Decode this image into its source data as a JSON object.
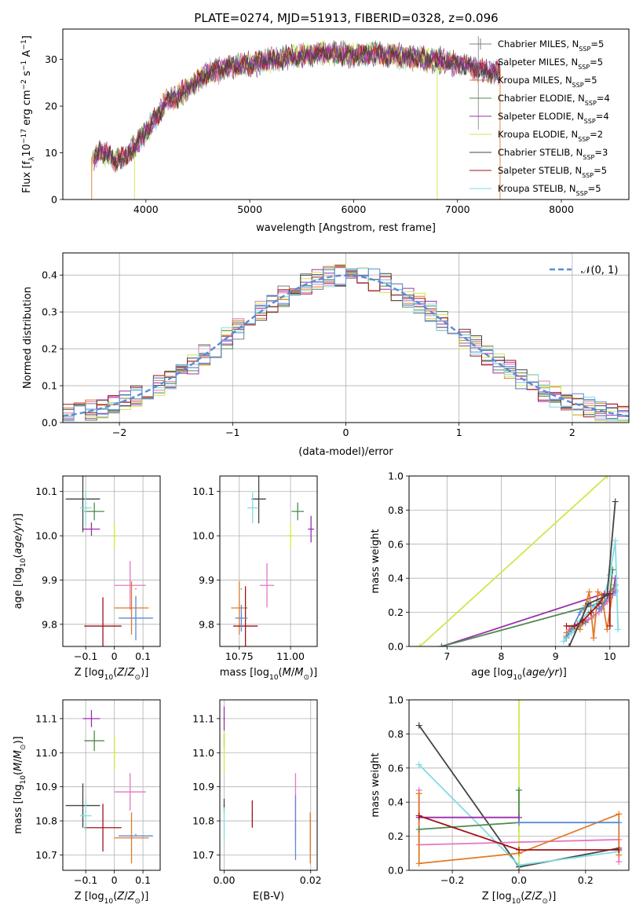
{
  "figure": {
    "title": "PLATE=0274, MJD=51913, FIBERID=0328, z=0.096"
  },
  "series": [
    {
      "label": "Chabrier MILES, N$_{SSP}$=5",
      "label_main": "Chabrier MILES, N",
      "label_sub": "SSP",
      "label_tail": "=5",
      "color": "#7f7f7f"
    },
    {
      "label": "Salpeter MILES, N$_{SSP}$=5",
      "label_main": "Salpeter MILES, N",
      "label_sub": "SSP",
      "label_tail": "=5",
      "color": "#e377c2"
    },
    {
      "label": "Kroupa MILES, N$_{SSP}$=5",
      "label_main": "Kroupa MILES, N",
      "label_sub": "SSP",
      "label_tail": "=5",
      "color": "#e07b27"
    },
    {
      "label": "Chabrier ELODIE, N$_{SSP}$=4",
      "label_main": "Chabrier ELODIE, N",
      "label_sub": "SSP",
      "label_tail": "=4",
      "color": "#4f8a4f"
    },
    {
      "label": "Salpeter ELODIE, N$_{SSP}$=4",
      "label_main": "Salpeter ELODIE, N",
      "label_sub": "SSP",
      "label_tail": "=4",
      "color": "#9b2fae"
    },
    {
      "label": "Kroupa ELODIE, N$_{SSP}$=2",
      "label_main": "Kroupa ELODIE, N",
      "label_sub": "SSP",
      "label_tail": "=2",
      "color": "#cde84b"
    },
    {
      "label": "Chabrier STELIB, N$_{SSP}$=3",
      "label_main": "Chabrier STELIB, N",
      "label_sub": "SSP",
      "label_tail": "=3",
      "color": "#444444"
    },
    {
      "label": "Salpeter STELIB, N$_{SSP}$=5",
      "label_main": "Salpeter STELIB, N",
      "label_sub": "SSP",
      "label_tail": "=5",
      "color": "#a01418"
    },
    {
      "label": "Kroupa STELIB, N$_{SSP}$=5",
      "label_main": "Kroupa STELIB, N",
      "label_sub": "SSP",
      "label_tail": "=5",
      "color": "#80dce0"
    },
    {
      "label": "",
      "color": "#5b8ad6"
    }
  ],
  "chart_data": [
    {
      "id": "spectrum",
      "type": "line",
      "xlabel": "wavelength [Angstrom, rest frame]",
      "ylabel": "Flux [f$_\\lambda$10$^{-17}$ erg cm$^{-2}$ s$^{-1}$ A$^{-1}$]",
      "ylabel_parts": [
        "Flux [f",
        "λ",
        "10",
        "−17",
        " erg cm",
        "−2",
        " s",
        "−1",
        " A",
        "−1",
        "]"
      ],
      "xlim": [
        3200,
        8650
      ],
      "ylim": [
        0,
        36.5
      ],
      "xticks": [
        4000,
        5000,
        6000,
        7000,
        8000
      ],
      "yticks": [
        0,
        10,
        20,
        30
      ],
      "grid": false,
      "legend": "right",
      "continuum": {
        "x": [
          3500,
          3550,
          3600,
          3700,
          3800,
          3900,
          4000,
          4100,
          4200,
          4300,
          4400,
          4500,
          4600,
          4700,
          4800,
          4900,
          5000,
          5100,
          5200,
          5300,
          5400,
          5500,
          5600,
          5700,
          5800,
          5900,
          6000,
          6100,
          6200,
          6300,
          6400,
          6500,
          6600,
          6700,
          6800,
          6900,
          7000,
          7100,
          7200,
          7300,
          7410
        ],
        "y": [
          8.5,
          10.5,
          10.0,
          8.5,
          9.0,
          11.5,
          14.5,
          17.5,
          21.0,
          22.0,
          23.5,
          25.5,
          27.0,
          27.8,
          28.3,
          28.6,
          29.0,
          29.5,
          29.8,
          30.2,
          30.6,
          30.8,
          31.2,
          31.5,
          31.2,
          31.0,
          31.0,
          31.2,
          31.5,
          31.0,
          30.8,
          30.5,
          30.3,
          30.0,
          29.8,
          29.5,
          29.0,
          28.5,
          28.0,
          27.5,
          27.0
        ]
      },
      "x_range_by_series": [
        [
          3480,
          7380
        ],
        [
          3480,
          7410
        ],
        [
          3480,
          7420
        ],
        [
          3500,
          7410
        ],
        [
          3500,
          7410
        ],
        [
          3480,
          6810
        ],
        [
          3500,
          7410
        ],
        [
          3500,
          7410
        ],
        [
          3480,
          7410
        ]
      ]
    },
    {
      "id": "residuals",
      "type": "histogram",
      "xlabel": "(data-model)/error",
      "ylabel": "Normed distribution",
      "xlim": [
        -2.5,
        2.5
      ],
      "ylim": [
        0,
        0.46
      ],
      "xticks": [
        -2,
        -1,
        0,
        1,
        2
      ],
      "yticks": [
        0.0,
        0.1,
        0.2,
        0.3,
        0.4
      ],
      "grid": true,
      "legend": "top-right",
      "gaussian_label": "$\\mathcal{N}(0, 1)$",
      "gaussian_label_text": "𝒩(0, 1)",
      "bin_width": 0.1
    },
    {
      "id": "age_vs_Z",
      "type": "errorbar",
      "xlabel": "Z [log$_{10}$($Z$/$Z_\\odot$)]",
      "ylabel": "age  [log$_{10}$($age/yr$)]",
      "xlim": [
        -0.18,
        0.16
      ],
      "ylim": [
        9.75,
        10.135
      ],
      "xticks": [
        -0.1,
        0.0,
        0.1
      ],
      "yticks": [
        9.8,
        9.9,
        10.0,
        10.1
      ],
      "grid": true,
      "points": [
        {
          "s": 0,
          "x": 0.075,
          "y": 9.88,
          "xerr": 0.0,
          "yerr": 0.0
        },
        {
          "s": 1,
          "x": 0.055,
          "y": 9.888,
          "xerr": 0.055,
          "yerr": 0.055
        },
        {
          "s": 2,
          "x": 0.06,
          "y": 9.837,
          "xerr": 0.06,
          "yerr": 0.06
        },
        {
          "s": 3,
          "x": -0.07,
          "y": 10.055,
          "xerr": 0.035,
          "yerr": 0.02
        },
        {
          "s": 4,
          "x": -0.08,
          "y": 10.015,
          "xerr": 0.03,
          "yerr": 0.015
        },
        {
          "s": 5,
          "x": 0.0,
          "y": 10.0,
          "xerr": 0.01,
          "yerr": 0.03
        },
        {
          "s": 6,
          "x": -0.11,
          "y": 10.083,
          "xerr": 0.06,
          "yerr": 0.075
        },
        {
          "s": 7,
          "x": -0.04,
          "y": 9.796,
          "xerr": 0.065,
          "yerr": 0.065
        },
        {
          "s": 8,
          "x": -0.1,
          "y": 10.063,
          "xerr": 0.02,
          "yerr": 0.04
        },
        {
          "s": 9,
          "x": 0.075,
          "y": 9.814,
          "xerr": 0.06,
          "yerr": 0.05
        }
      ]
    },
    {
      "id": "age_vs_mass",
      "type": "errorbar",
      "xlabel": "mass [log$_{10}$($M/M_\\odot$)]",
      "ylabel": "",
      "xlim": [
        10.655,
        11.13
      ],
      "ylim": [
        9.75,
        10.135
      ],
      "xticks": [
        10.75,
        11.0
      ],
      "xtick_labels": [
        "10.75",
        "11.00"
      ],
      "yticks": [
        9.8,
        9.9,
        10.0,
        10.1
      ],
      "grid": true,
      "points": [
        {
          "s": 0,
          "x": 10.76,
          "y": 9.88,
          "xerr": 0.0,
          "yerr": 0.0
        },
        {
          "s": 1,
          "x": 10.885,
          "y": 9.888,
          "xerr": 0.035,
          "yerr": 0.05
        },
        {
          "s": 2,
          "x": 10.75,
          "y": 9.837,
          "xerr": 0.04,
          "yerr": 0.06
        },
        {
          "s": 3,
          "x": 11.035,
          "y": 10.055,
          "xerr": 0.03,
          "yerr": 0.02
        },
        {
          "s": 4,
          "x": 11.1,
          "y": 10.015,
          "xerr": 0.015,
          "yerr": 0.03
        },
        {
          "s": 5,
          "x": 11.0,
          "y": 10.0,
          "xerr": 0.02,
          "yerr": 0.03
        },
        {
          "s": 6,
          "x": 10.845,
          "y": 10.083,
          "xerr": 0.035,
          "yerr": 0.055
        },
        {
          "s": 7,
          "x": 10.78,
          "y": 9.796,
          "xerr": 0.06,
          "yerr": 0.09
        },
        {
          "s": 8,
          "x": 10.815,
          "y": 10.063,
          "xerr": 0.025,
          "yerr": 0.035
        },
        {
          "s": 9,
          "x": 10.76,
          "y": 9.814,
          "xerr": 0.03,
          "yerr": 0.03
        }
      ]
    },
    {
      "id": "mass_weight_vs_age",
      "type": "line",
      "xlabel": "age  [log$_{10}$($age/yr$)]",
      "ylabel": "mass weight",
      "xlim": [
        6.3,
        10.35
      ],
      "ylim": [
        0.0,
        1.0
      ],
      "xticks": [
        7,
        8,
        9,
        10
      ],
      "yticks": [
        0.0,
        0.2,
        0.4,
        0.6,
        0.8,
        1.0
      ],
      "grid": true
    },
    {
      "id": "mass_vs_Z",
      "type": "errorbar",
      "xlabel": "Z [log$_{10}$($Z$/$Z_\\odot$)]",
      "ylabel": "mass [log$_{10}$($M/M_\\odot$)]",
      "xlim": [
        -0.18,
        0.16
      ],
      "ylim": [
        10.655,
        11.155
      ],
      "xticks": [
        -0.1,
        0.0,
        0.1
      ],
      "yticks": [
        10.7,
        10.8,
        10.9,
        11.0,
        11.1
      ],
      "grid": true,
      "points": [
        {
          "s": 0,
          "x": 0.075,
          "y": 10.76,
          "xerr": 0.0,
          "yerr": 0.0
        },
        {
          "s": 1,
          "x": 0.055,
          "y": 10.885,
          "xerr": 0.055,
          "yerr": 0.055
        },
        {
          "s": 2,
          "x": 0.06,
          "y": 10.75,
          "xerr": 0.06,
          "yerr": 0.075
        },
        {
          "s": 3,
          "x": -0.07,
          "y": 11.035,
          "xerr": 0.035,
          "yerr": 0.03
        },
        {
          "s": 4,
          "x": -0.08,
          "y": 11.1,
          "xerr": 0.03,
          "yerr": 0.025
        },
        {
          "s": 5,
          "x": 0.0,
          "y": 11.0,
          "xerr": 0.01,
          "yerr": 0.05
        },
        {
          "s": 6,
          "x": -0.11,
          "y": 10.845,
          "xerr": 0.06,
          "yerr": 0.065
        },
        {
          "s": 7,
          "x": -0.04,
          "y": 10.78,
          "xerr": 0.065,
          "yerr": 0.07
        },
        {
          "s": 8,
          "x": -0.1,
          "y": 10.815,
          "xerr": 0.02,
          "yerr": 0.05
        },
        {
          "s": 9,
          "x": 0.075,
          "y": 10.756,
          "xerr": 0.06,
          "yerr": 0.0
        }
      ]
    },
    {
      "id": "mass_vs_EBV",
      "type": "errorbar",
      "xlabel": "E(B-V)",
      "ylabel": "",
      "xlim": [
        -0.001,
        0.0215
      ],
      "ylim": [
        10.655,
        11.155
      ],
      "xticks": [
        0.0,
        0.02
      ],
      "xtick_labels": [
        "0.00",
        "0.02"
      ],
      "yticks": [
        10.7,
        10.8,
        10.9,
        11.0,
        11.1
      ],
      "grid": true,
      "points": [
        {
          "s": 1,
          "x": 0.0165,
          "y": 10.84,
          "xerr": 0,
          "yerr": 0.1
        },
        {
          "s": 2,
          "x": 0.0199,
          "y": 10.75,
          "xerr": 0,
          "yerr": 0.075
        },
        {
          "s": 3,
          "x": 0.0,
          "y": 11.035,
          "xerr": 0,
          "yerr": 0.02
        },
        {
          "s": 4,
          "x": 0.0,
          "y": 11.1,
          "xerr": 0,
          "yerr": 0.035
        },
        {
          "s": 5,
          "x": 0.0,
          "y": 11.0,
          "xerr": 0,
          "yerr": 0.06
        },
        {
          "s": 6,
          "x": 0.0,
          "y": 10.845,
          "xerr": 0,
          "yerr": 0.02
        },
        {
          "s": 7,
          "x": 0.0065,
          "y": 10.82,
          "xerr": 0,
          "yerr": 0.04
        },
        {
          "s": 8,
          "x": 0.0,
          "y": 10.79,
          "xerr": 0,
          "yerr": 0.05
        },
        {
          "s": 9,
          "x": 0.0165,
          "y": 10.78,
          "xerr": 0,
          "yerr": 0.095
        }
      ]
    },
    {
      "id": "mass_weight_vs_Z",
      "type": "line",
      "xlabel": "Z [log$_{10}$($Z$/$Z_\\odot$)]",
      "ylabel": "mass weight",
      "xlim": [
        -0.33,
        0.33
      ],
      "ylim": [
        0.0,
        1.0
      ],
      "xticks": [
        -0.2,
        0.0,
        0.2
      ],
      "xtick_labels": [
        "−0.2",
        "0.0",
        "0.2"
      ],
      "yticks": [
        0.0,
        0.2,
        0.4,
        0.6,
        0.8,
        1.0
      ],
      "grid": true
    }
  ]
}
